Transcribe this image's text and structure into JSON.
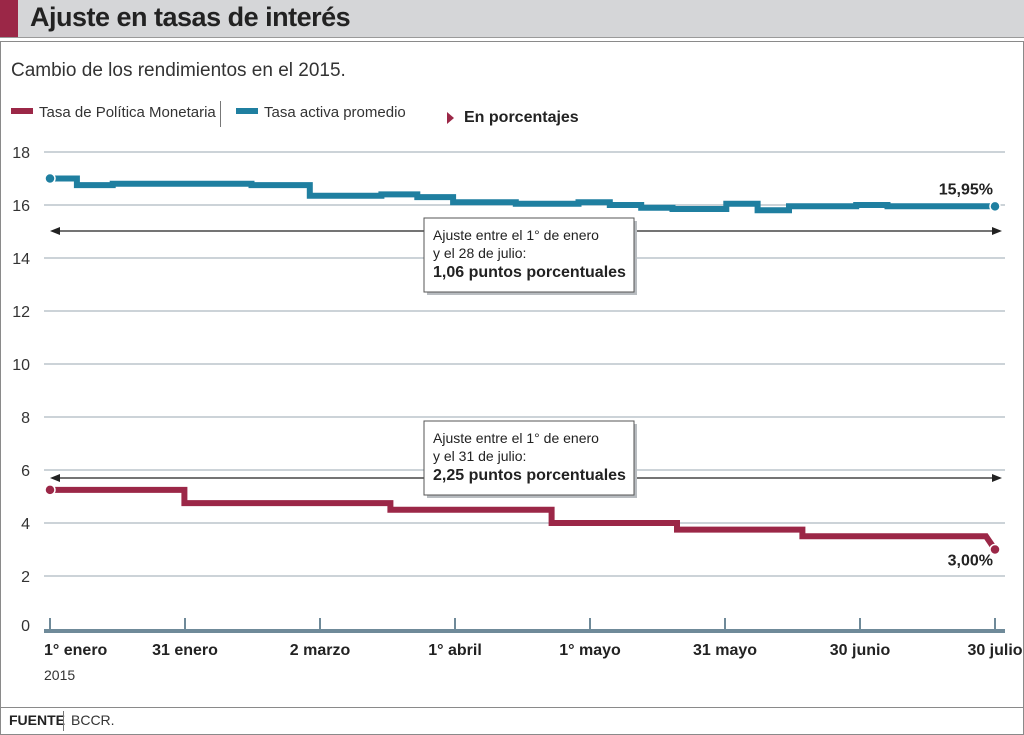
{
  "header": {
    "title": "Ajuste en tasas de interés"
  },
  "subtitle": "Cambio de los rendimientos en el 2015.",
  "legend": {
    "items": [
      {
        "label": "Tasa de Política Monetaria",
        "color": "#9b2747"
      },
      {
        "label": "Tasa activa promedio",
        "color": "#1f7fa0"
      }
    ],
    "note": "En porcentajes"
  },
  "footer": {
    "label": "FUENTE",
    "source": "BCCR."
  },
  "chart_data": {
    "type": "line",
    "x_ticks": [
      "1° enero",
      "31 enero",
      "2 marzo",
      "1° abril",
      "1° mayo",
      "31 mayo",
      "30 junio",
      "30 julio"
    ],
    "x_year": "2015",
    "y_ticks": [
      "0",
      "2",
      "4",
      "6",
      "8",
      "10",
      "12",
      "14",
      "16",
      "18"
    ],
    "ylim": [
      0,
      18
    ],
    "grid": true,
    "series": [
      {
        "name": "Tasa activa promedio",
        "color": "#1f7fa0",
        "end_label": "15,95%",
        "points": [
          [
            "2015-01-01",
            17.0
          ],
          [
            "2015-01-07",
            17.0
          ],
          [
            "2015-01-07",
            16.75
          ],
          [
            "2015-01-15",
            16.75
          ],
          [
            "2015-01-15",
            16.8
          ],
          [
            "2015-02-15",
            16.8
          ],
          [
            "2015-02-15",
            16.75
          ],
          [
            "2015-02-28",
            16.75
          ],
          [
            "2015-02-28",
            16.35
          ],
          [
            "2015-03-16",
            16.35
          ],
          [
            "2015-03-16",
            16.4
          ],
          [
            "2015-03-24",
            16.4
          ],
          [
            "2015-03-24",
            16.3
          ],
          [
            "2015-04-01",
            16.3
          ],
          [
            "2015-04-01",
            16.1
          ],
          [
            "2015-04-15",
            16.1
          ],
          [
            "2015-04-15",
            16.05
          ],
          [
            "2015-04-29",
            16.05
          ],
          [
            "2015-04-29",
            16.1
          ],
          [
            "2015-05-06",
            16.1
          ],
          [
            "2015-05-06",
            16.0
          ],
          [
            "2015-05-13",
            16.0
          ],
          [
            "2015-05-13",
            15.9
          ],
          [
            "2015-05-20",
            15.9
          ],
          [
            "2015-05-20",
            15.85
          ],
          [
            "2015-06-01",
            15.85
          ],
          [
            "2015-06-01",
            16.05
          ],
          [
            "2015-06-08",
            16.05
          ],
          [
            "2015-06-08",
            15.8
          ],
          [
            "2015-06-15",
            15.8
          ],
          [
            "2015-06-15",
            15.95
          ],
          [
            "2015-06-30",
            15.95
          ],
          [
            "2015-06-30",
            16.0
          ],
          [
            "2015-07-07",
            16.0
          ],
          [
            "2015-07-07",
            15.95
          ],
          [
            "2015-07-31",
            15.95
          ]
        ]
      },
      {
        "name": "Tasa de Política Monetaria",
        "color": "#9b2747",
        "end_label": "3,00%",
        "points": [
          [
            "2015-01-01",
            5.25
          ],
          [
            "2015-01-31",
            5.25
          ],
          [
            "2015-01-31",
            4.75
          ],
          [
            "2015-03-18",
            4.75
          ],
          [
            "2015-03-18",
            4.5
          ],
          [
            "2015-04-23",
            4.5
          ],
          [
            "2015-04-23",
            4.0
          ],
          [
            "2015-05-21",
            4.0
          ],
          [
            "2015-05-21",
            3.75
          ],
          [
            "2015-06-18",
            3.75
          ],
          [
            "2015-06-18",
            3.5
          ],
          [
            "2015-07-29",
            3.5
          ],
          [
            "2015-07-31",
            3.0
          ]
        ]
      }
    ],
    "annotations": [
      {
        "text1": "Ajuste entre el 1° de enero",
        "text2": "y el 28 de julio:",
        "bold": "1,06  puntos porcentuales"
      },
      {
        "text1": "Ajuste entre el 1° de enero",
        "text2": "y el 31 de julio:",
        "bold": "2,25 puntos porcentuales"
      }
    ]
  }
}
